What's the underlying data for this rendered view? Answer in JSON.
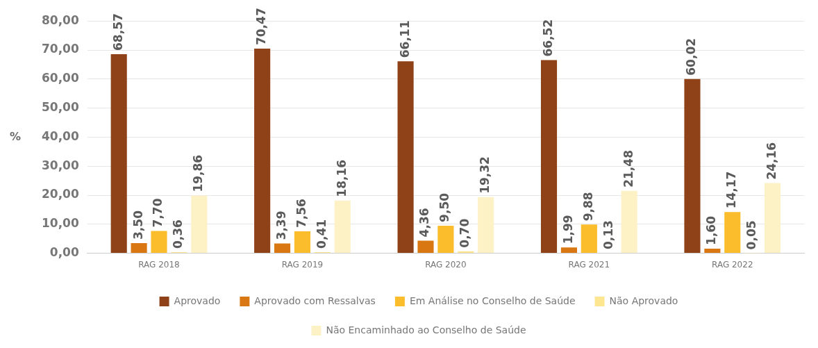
{
  "chart_data": {
    "type": "bar",
    "ylabel": "%",
    "categories": [
      "RAG 2018",
      "RAG 2019",
      "RAG 2020",
      "RAG 2021",
      "RAG 2022"
    ],
    "series": [
      {
        "name": "Aprovado",
        "color": "#8f4117",
        "values": [
          68.57,
          70.47,
          66.11,
          66.52,
          60.02
        ],
        "value_labels": [
          "68,57",
          "70,47",
          "66,11",
          "66,52",
          "60,02"
        ]
      },
      {
        "name": "Aprovado com Ressalvas",
        "color": "#d97813",
        "values": [
          3.5,
          3.39,
          4.36,
          1.99,
          1.6
        ],
        "value_labels": [
          "3,50",
          "3,39",
          "4,36",
          "1,99",
          "1,60"
        ]
      },
      {
        "name": "Em Análise no Conselho de Saúde",
        "color": "#fbbd2b",
        "values": [
          7.7,
          7.56,
          9.5,
          9.88,
          14.17
        ],
        "value_labels": [
          "7,70",
          "7,56",
          "9,50",
          "9,88",
          "14,17"
        ]
      },
      {
        "name": "Não Aprovado",
        "color": "#fde68f",
        "values": [
          0.36,
          0.41,
          0.7,
          0.13,
          0.05
        ],
        "value_labels": [
          "0,36",
          "0,41",
          "0,70",
          "0,13",
          "0,05"
        ]
      },
      {
        "name": "Não Encaminhado ao Conselho de Saúde",
        "color": "#fdf1c6",
        "values": [
          19.86,
          18.16,
          19.32,
          21.48,
          24.16
        ],
        "value_labels": [
          "19,86",
          "18,16",
          "19,32",
          "21,48",
          "24,16"
        ]
      }
    ],
    "ylim": [
      0,
      80
    ],
    "yticks": [
      {
        "value": 0,
        "label": "0,00"
      },
      {
        "value": 10,
        "label": "10,00"
      },
      {
        "value": 20,
        "label": "20,00"
      },
      {
        "value": 30,
        "label": "30,00"
      },
      {
        "value": 40,
        "label": "40,00"
      },
      {
        "value": 50,
        "label": "50,00"
      },
      {
        "value": 60,
        "label": "60,00"
      },
      {
        "value": 70,
        "label": "70,00"
      },
      {
        "value": 80,
        "label": "80,00"
      }
    ],
    "grid": "y",
    "legend": "bottom"
  }
}
